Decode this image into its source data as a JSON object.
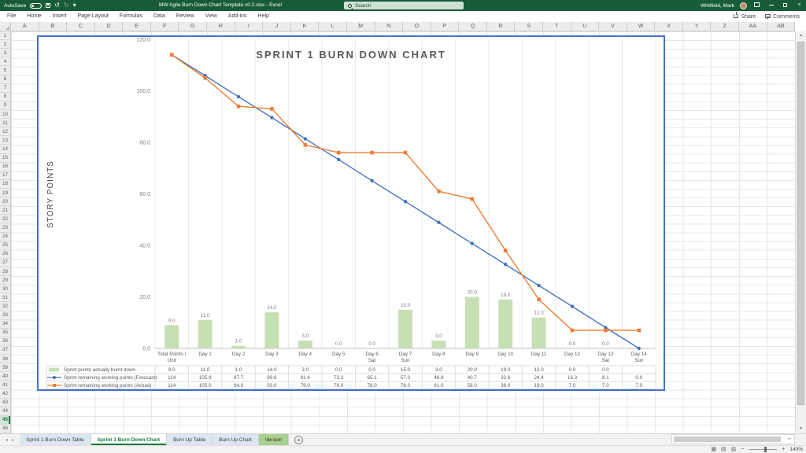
{
  "titlebar": {
    "autosave_label": "AutoSave",
    "document_title": "MW Agile Burn Down Chart Template v0.2.xlsx  -  Excel",
    "search_placeholder": "Search",
    "user_name": "Whitfield, Mark"
  },
  "ribbon": {
    "tabs": [
      "File",
      "Home",
      "Insert",
      "Page Layout",
      "Formulas",
      "Data",
      "Review",
      "View",
      "Add-ins",
      "Help"
    ],
    "share_label": "Share",
    "comments_label": "Comments"
  },
  "grid": {
    "column_headers": [
      "A",
      "B",
      "C",
      "D",
      "E",
      "F",
      "G",
      "H",
      "I",
      "J",
      "K",
      "L",
      "M",
      "N",
      "O",
      "P",
      "Q",
      "R",
      "S",
      "T",
      "U",
      "V",
      "W",
      "X",
      "Y",
      "Z",
      "AA",
      "AB"
    ],
    "row_start": 1,
    "row_end": 46,
    "active_row": 45
  },
  "chart_data": {
    "type": "combo",
    "title": "SPRINT 1 BURN DOWN CHART",
    "ylabel": "STORY POINTS",
    "ylim": [
      0,
      120
    ],
    "ytick_labels": [
      "120.0",
      "100.0",
      "80.0",
      "60.0",
      "40.0",
      "20.0",
      "0.0"
    ],
    "grid": "vertical-only",
    "legend_position": "data-table-left",
    "data_table": true,
    "bar_labels": true,
    "categories": [
      [
        "Total Points /",
        "Unit"
      ],
      [
        "Day 1"
      ],
      [
        "Day 2"
      ],
      [
        "Day 3"
      ],
      [
        "Day 4"
      ],
      [
        "Day 5"
      ],
      [
        "Day 6",
        "Sat"
      ],
      [
        "Day 7",
        "Sun"
      ],
      [
        "Day 8"
      ],
      [
        "Day 9"
      ],
      [
        "Day 10"
      ],
      [
        "Day 11"
      ],
      [
        "Day 12"
      ],
      [
        "Day 13",
        "Sat"
      ],
      [
        "Day 14",
        "Sun"
      ]
    ],
    "series": [
      {
        "name": "Sprint points actually burnt down",
        "type": "bar",
        "color": "#C6E0B4",
        "values": [
          "9.0",
          "11.0",
          "1.0",
          "14.0",
          "3.0",
          "0.0",
          "0.0",
          "15.0",
          "3.0",
          "20.0",
          "19.0",
          "12.0",
          "0.0",
          "0.0",
          ""
        ]
      },
      {
        "name": "Sprint remaining working points (Forecast)",
        "type": "line",
        "marker": "circle",
        "color": "#4472C4",
        "values": [
          "114",
          "105.9",
          "97.7",
          "89.6",
          "81.4",
          "73.3",
          "65.1",
          "57.0",
          "48.9",
          "40.7",
          "32.6",
          "24.4",
          "16.3",
          "8.1",
          "0.0"
        ]
      },
      {
        "name": "Sprint remaining working points (Actual)",
        "type": "line",
        "marker": "square",
        "color": "#ED7D31",
        "values": [
          "114",
          "105.0",
          "94.0",
          "93.0",
          "79.0",
          "76.0",
          "76.0",
          "76.0",
          "61.0",
          "58.0",
          "38.0",
          "19.0",
          "7.0",
          "7.0",
          "7.0"
        ]
      }
    ]
  },
  "sheet_tabs": {
    "items": [
      {
        "label": "Sprint 1 Burn Down Table",
        "state": "inactive"
      },
      {
        "label": "Sprint 1 Burn Down Chart",
        "state": "active"
      },
      {
        "label": "Burn Up Table",
        "state": "inactive"
      },
      {
        "label": "Burn Up Chart",
        "state": "inactive"
      },
      {
        "label": "Version",
        "state": "colored"
      }
    ],
    "add_label": "+"
  },
  "status_bar": {
    "zoom_level": "140%",
    "view_icons": [
      "normal-view",
      "page-layout-view",
      "page-break-view"
    ]
  },
  "colors": {
    "titlebar_green": "#185C37",
    "accent_green": "#107C41",
    "chart_border": "#4472C4",
    "bar_fill": "#C6E0B4",
    "forecast_line": "#4472C4",
    "actual_line": "#ED7D31",
    "version_tab_green": "#A9D08E"
  }
}
